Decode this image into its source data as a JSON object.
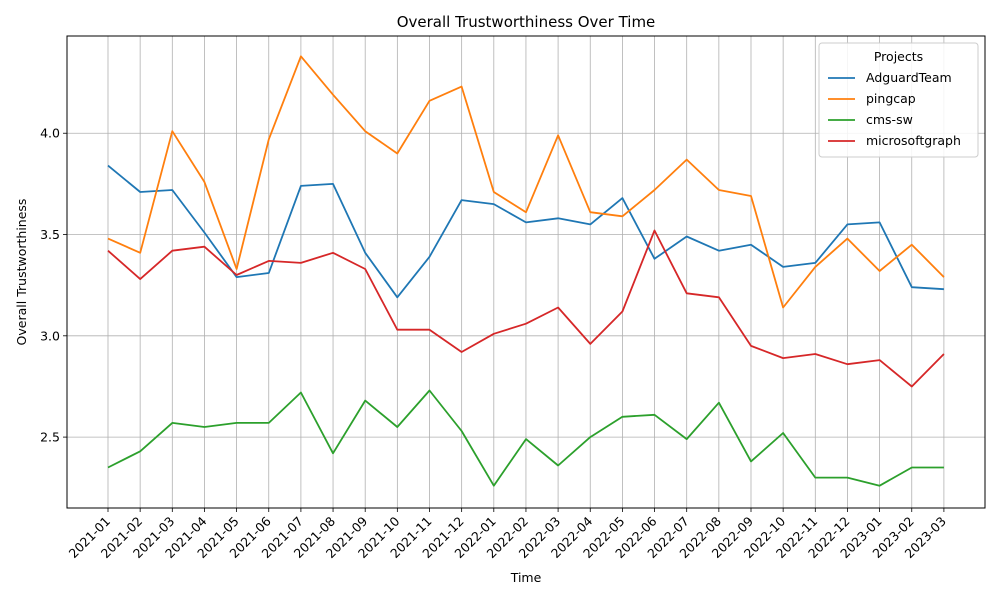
{
  "chart_data": {
    "type": "line",
    "title": "Overall Trustworthiness Over Time",
    "xlabel": "Time",
    "ylabel": "Overall Trustworthiness",
    "ylim": [
      2.15,
      4.48
    ],
    "yticks": [
      "2.5",
      "3.0",
      "3.5",
      "4.0"
    ],
    "ytick_values": [
      2.5,
      3.0,
      3.5,
      4.0
    ],
    "grid": true,
    "legend_title": "Projects",
    "legend_position": "top-right",
    "categories": [
      "2021-01",
      "2021-02",
      "2021-03",
      "2021-04",
      "2021-05",
      "2021-06",
      "2021-07",
      "2021-08",
      "2021-09",
      "2021-10",
      "2021-11",
      "2021-12",
      "2022-01",
      "2022-02",
      "2022-03",
      "2022-04",
      "2022-05",
      "2022-06",
      "2022-07",
      "2022-08",
      "2022-09",
      "2022-10",
      "2022-11",
      "2022-12",
      "2023-01",
      "2023-02",
      "2023-03"
    ],
    "series": [
      {
        "name": "AdguardTeam",
        "color": "#1f77b4",
        "values": [
          3.84,
          3.71,
          3.72,
          3.51,
          3.29,
          3.31,
          3.74,
          3.75,
          3.41,
          3.19,
          3.39,
          3.67,
          3.65,
          3.56,
          3.58,
          3.55,
          3.68,
          3.38,
          3.49,
          3.42,
          3.45,
          3.34,
          3.36,
          3.55,
          3.56,
          3.24,
          3.23
        ]
      },
      {
        "name": "pingcap",
        "color": "#ff7f0e",
        "values": [
          3.48,
          3.41,
          4.01,
          3.76,
          3.33,
          3.97,
          4.38,
          4.19,
          4.01,
          3.9,
          4.16,
          4.23,
          3.71,
          3.61,
          3.99,
          3.61,
          3.59,
          3.72,
          3.87,
          3.72,
          3.69,
          3.14,
          3.34,
          3.48,
          3.32,
          3.45,
          3.29
        ]
      },
      {
        "name": "cms-sw",
        "color": "#2ca02c",
        "values": [
          2.35,
          2.43,
          2.57,
          2.55,
          2.57,
          2.57,
          2.72,
          2.42,
          2.68,
          2.55,
          2.73,
          2.53,
          2.26,
          2.49,
          2.36,
          2.5,
          2.6,
          2.61,
          2.49,
          2.67,
          2.38,
          2.52,
          2.3,
          2.3,
          2.26,
          2.35,
          2.35
        ]
      },
      {
        "name": "microsoftgraph",
        "color": "#d62728",
        "values": [
          3.42,
          3.28,
          3.42,
          3.44,
          3.3,
          3.37,
          3.36,
          3.41,
          3.33,
          3.03,
          3.03,
          2.92,
          3.01,
          3.06,
          3.14,
          2.96,
          3.12,
          3.52,
          3.21,
          3.19,
          2.95,
          2.89,
          2.91,
          2.86,
          2.88,
          2.75,
          2.91
        ]
      }
    ]
  }
}
